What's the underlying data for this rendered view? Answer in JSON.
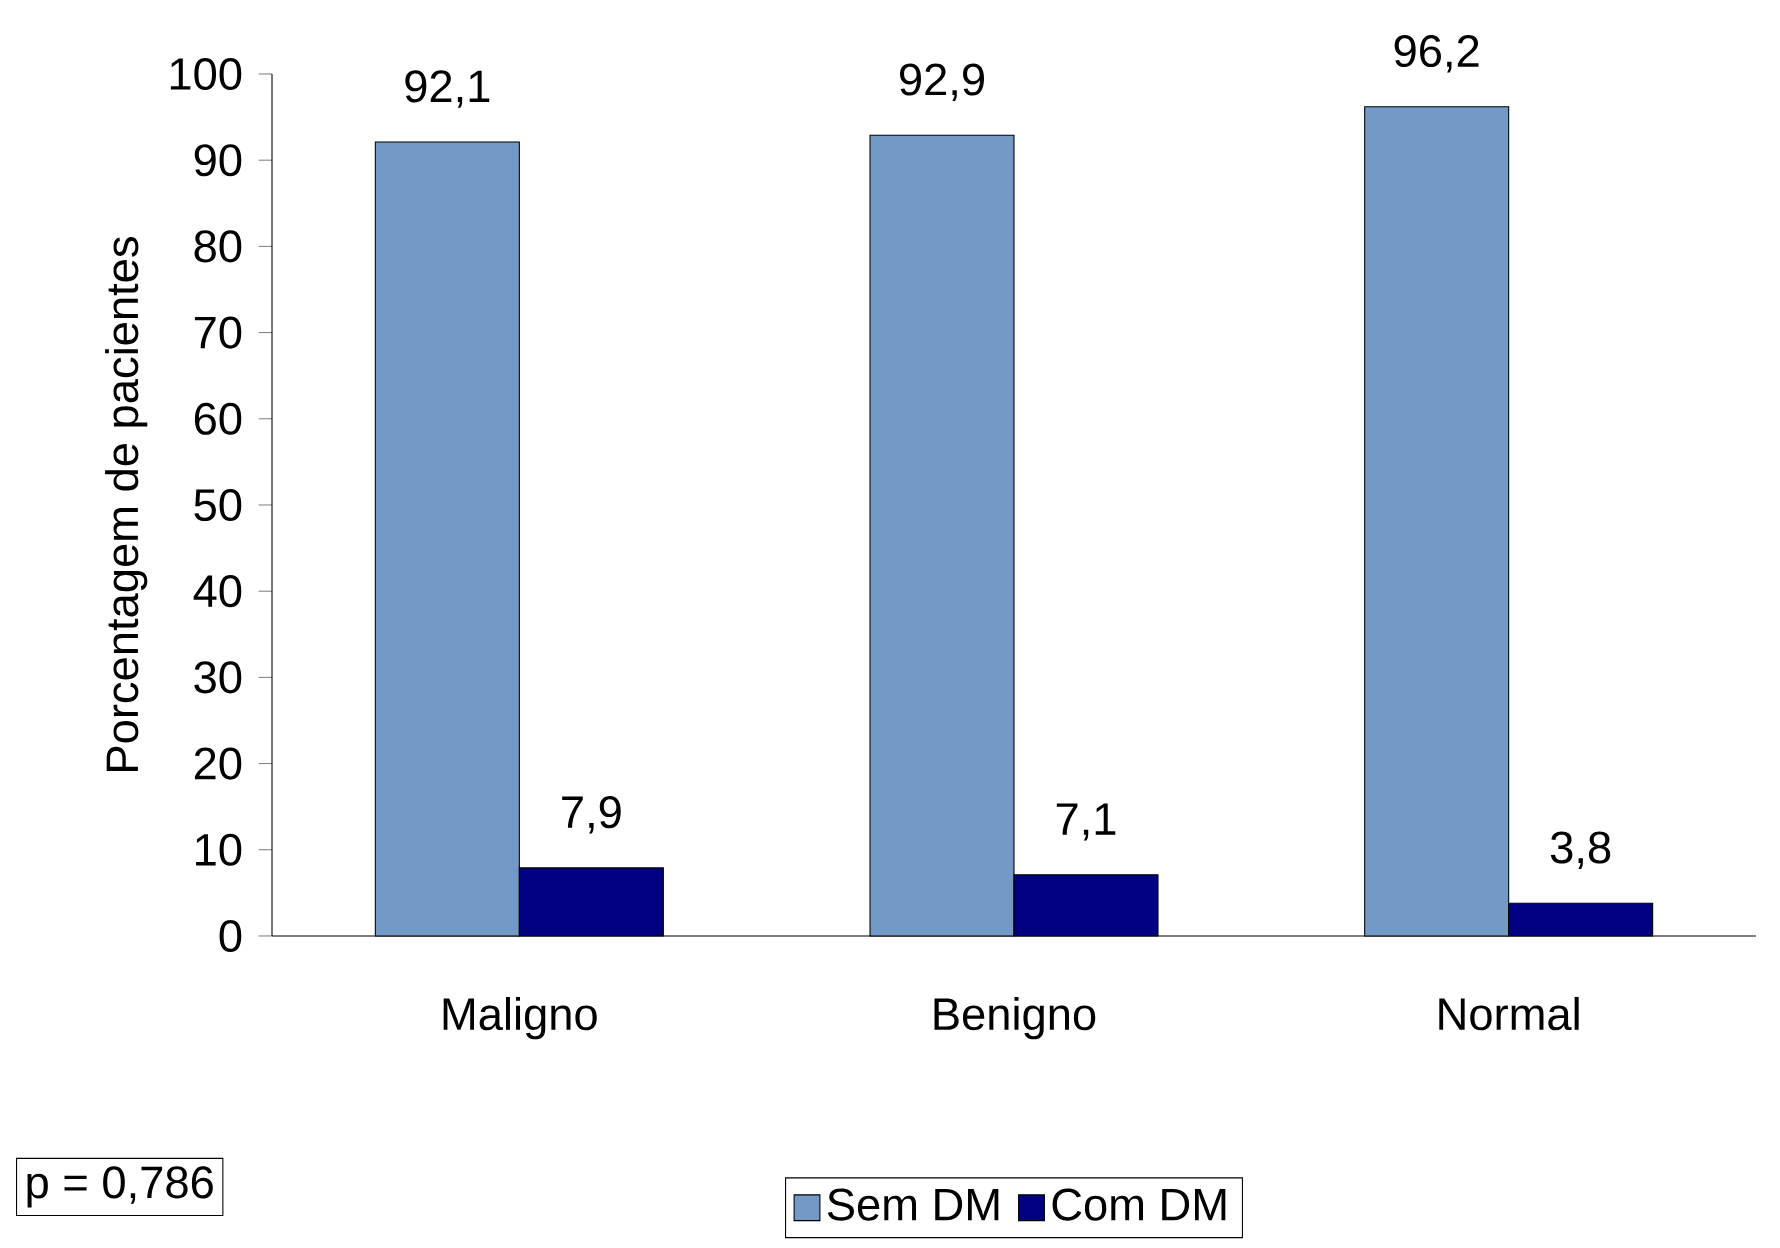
{
  "chart_data": {
    "type": "bar",
    "ylabel": "Porcentagem de pacientes",
    "categories": [
      "Maligno",
      "Benigno",
      "Normal"
    ],
    "series": [
      {
        "name": "Sem DM",
        "color": "#7399c6",
        "values": [
          92.1,
          92.9,
          96.2
        ],
        "value_labels": [
          "92,1",
          "92,9",
          "96,2"
        ]
      },
      {
        "name": "Com DM",
        "color": "#000080",
        "values": [
          7.9,
          7.1,
          3.8
        ],
        "value_labels": [
          "7,9",
          "7,1",
          "3,8"
        ]
      }
    ],
    "ylim": [
      0,
      100
    ],
    "yticks": [
      0,
      10,
      20,
      30,
      40,
      50,
      60,
      70,
      80,
      90,
      100
    ],
    "grid": false,
    "legend": "bottom",
    "annotations": [
      "p = 0,786"
    ]
  }
}
